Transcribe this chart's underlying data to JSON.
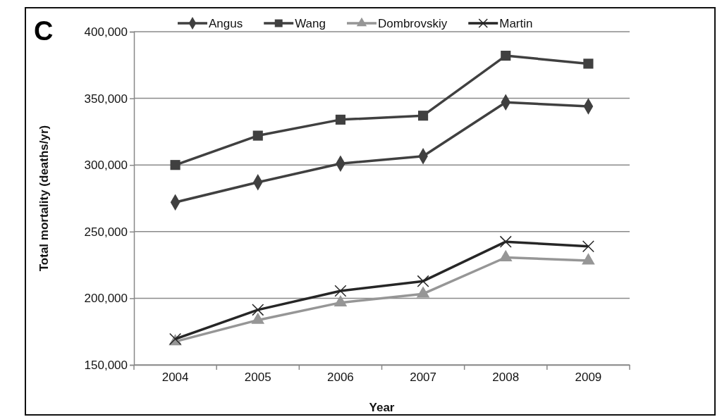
{
  "chart_data": {
    "type": "line",
    "title": "C",
    "xlabel": "Year",
    "ylabel": "Total mortality (deaths/yr)",
    "categories": [
      "2004",
      "2005",
      "2006",
      "2007",
      "2008",
      "2009"
    ],
    "series": [
      {
        "name": "Angus",
        "color": "#404040",
        "marker": "diamond",
        "values": [
          272000,
          287000,
          301000,
          306600,
          347000,
          344000
        ]
      },
      {
        "name": "Wang",
        "color": "#404040",
        "marker": "square",
        "values": [
          300000,
          322000,
          334000,
          337000,
          382000,
          376000
        ]
      },
      {
        "name": "Dombrovskiy",
        "color": "#969696",
        "marker": "triangle",
        "values": [
          167500,
          183600,
          196700,
          203300,
          230600,
          228200
        ]
      },
      {
        "name": "Martin",
        "color": "#262626",
        "marker": "cross",
        "values": [
          169400,
          191300,
          205500,
          212800,
          242400,
          238900
        ]
      }
    ],
    "ylim": [
      150000,
      400000
    ],
    "yticks": [
      {
        "value": 150000,
        "label": "150,000"
      },
      {
        "value": 200000,
        "label": "200,000"
      },
      {
        "value": 250000,
        "label": "250,000"
      },
      {
        "value": 300000,
        "label": "300,000"
      },
      {
        "value": 350000,
        "label": "350,000"
      },
      {
        "value": 400000,
        "label": "400,000"
      }
    ],
    "grid": "y",
    "legend": "top",
    "line_style": "solid"
  }
}
